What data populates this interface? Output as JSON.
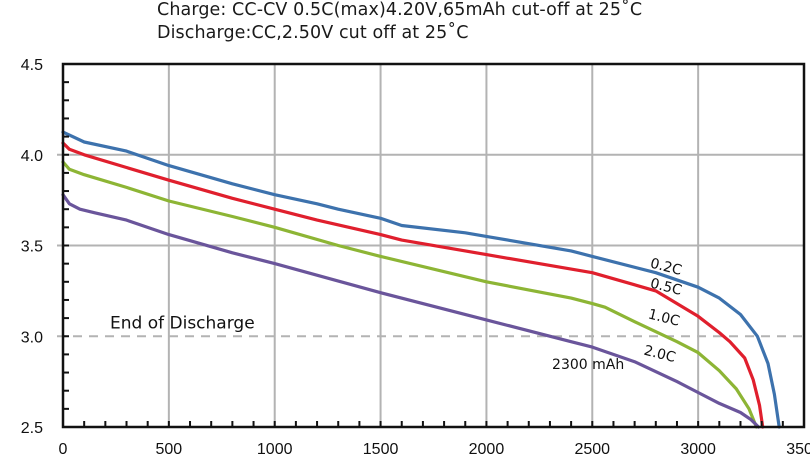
{
  "chart_data": {
    "type": "line",
    "title": "Charge: CC-CV 0.5C(max)4.20V,65mAh cut-off at 25˚C",
    "subtitle": "Discharge:CC,2.50V cut off at 25˚C",
    "xlabel": "",
    "ylabel": "",
    "xlim": [
      0,
      3500
    ],
    "ylim": [
      2.5,
      4.5
    ],
    "x_ticks": [
      "0",
      "500",
      "1000",
      "1500",
      "2000",
      "2500",
      "3000",
      "3500"
    ],
    "y_ticks": [
      "2.5",
      "3.0",
      "3.5",
      "4.0",
      "4.5"
    ],
    "grid": true,
    "reference_line": {
      "y": 3.0,
      "label": "End of Discharge",
      "style": "dashed"
    },
    "annotation": "2300 mAh",
    "series": [
      {
        "name": "0.2C",
        "color": "#3d72ad",
        "x": [
          0,
          100,
          300,
          500,
          800,
          1000,
          1200,
          1300,
          1500,
          1600,
          1900,
          2000,
          2400,
          2500,
          2800,
          3000,
          3100,
          3200,
          3280,
          3330,
          3360,
          3383
        ],
        "y": [
          4.125,
          4.07,
          4.02,
          3.94,
          3.84,
          3.78,
          3.73,
          3.7,
          3.65,
          3.61,
          3.57,
          3.55,
          3.47,
          3.44,
          3.35,
          3.27,
          3.21,
          3.12,
          3.0,
          2.85,
          2.68,
          2.5
        ]
      },
      {
        "name": "0.5C",
        "color": "#e01f2d",
        "x": [
          0,
          30,
          100,
          300,
          500,
          800,
          1000,
          1200,
          1500,
          1600,
          1900,
          2000,
          2400,
          2500,
          2800,
          3000,
          3100,
          3150,
          3220,
          3260,
          3290,
          3305
        ],
        "y": [
          4.065,
          4.03,
          4.0,
          3.93,
          3.86,
          3.76,
          3.7,
          3.64,
          3.56,
          3.53,
          3.47,
          3.45,
          3.37,
          3.35,
          3.25,
          3.11,
          3.02,
          2.97,
          2.88,
          2.76,
          2.62,
          2.5
        ]
      },
      {
        "name": "1.0C",
        "color": "#8db535",
        "x": [
          0,
          30,
          100,
          300,
          500,
          800,
          1000,
          1300,
          1500,
          2000,
          2400,
          2500,
          2560,
          2700,
          2900,
          3000,
          3100,
          3180,
          3240,
          3275
        ],
        "y": [
          3.96,
          3.92,
          3.89,
          3.82,
          3.745,
          3.66,
          3.6,
          3.5,
          3.44,
          3.3,
          3.21,
          3.18,
          3.16,
          3.08,
          2.97,
          2.91,
          2.81,
          2.71,
          2.6,
          2.5
        ]
      },
      {
        "name": "2.0C",
        "color": "#6a559b",
        "x": [
          0,
          30,
          80,
          150,
          300,
          500,
          800,
          1000,
          1500,
          2000,
          2400,
          2500,
          2700,
          2900,
          3000,
          3100,
          3200,
          3250,
          3285
        ],
        "y": [
          3.78,
          3.73,
          3.7,
          3.68,
          3.64,
          3.56,
          3.46,
          3.4,
          3.24,
          3.09,
          2.97,
          2.94,
          2.86,
          2.75,
          2.69,
          2.63,
          2.58,
          2.54,
          2.5
        ]
      }
    ],
    "series_labels": [
      {
        "text": "0.2C",
        "x": 2770,
        "y": 3.38
      },
      {
        "text": "0.5C",
        "x": 2770,
        "y": 3.27
      },
      {
        "text": "1.0C",
        "x": 2760,
        "y": 3.1
      },
      {
        "text": "2.0C",
        "x": 2740,
        "y": 2.9
      }
    ],
    "annotation_pos": {
      "x": 2310,
      "y": 2.82
    }
  }
}
